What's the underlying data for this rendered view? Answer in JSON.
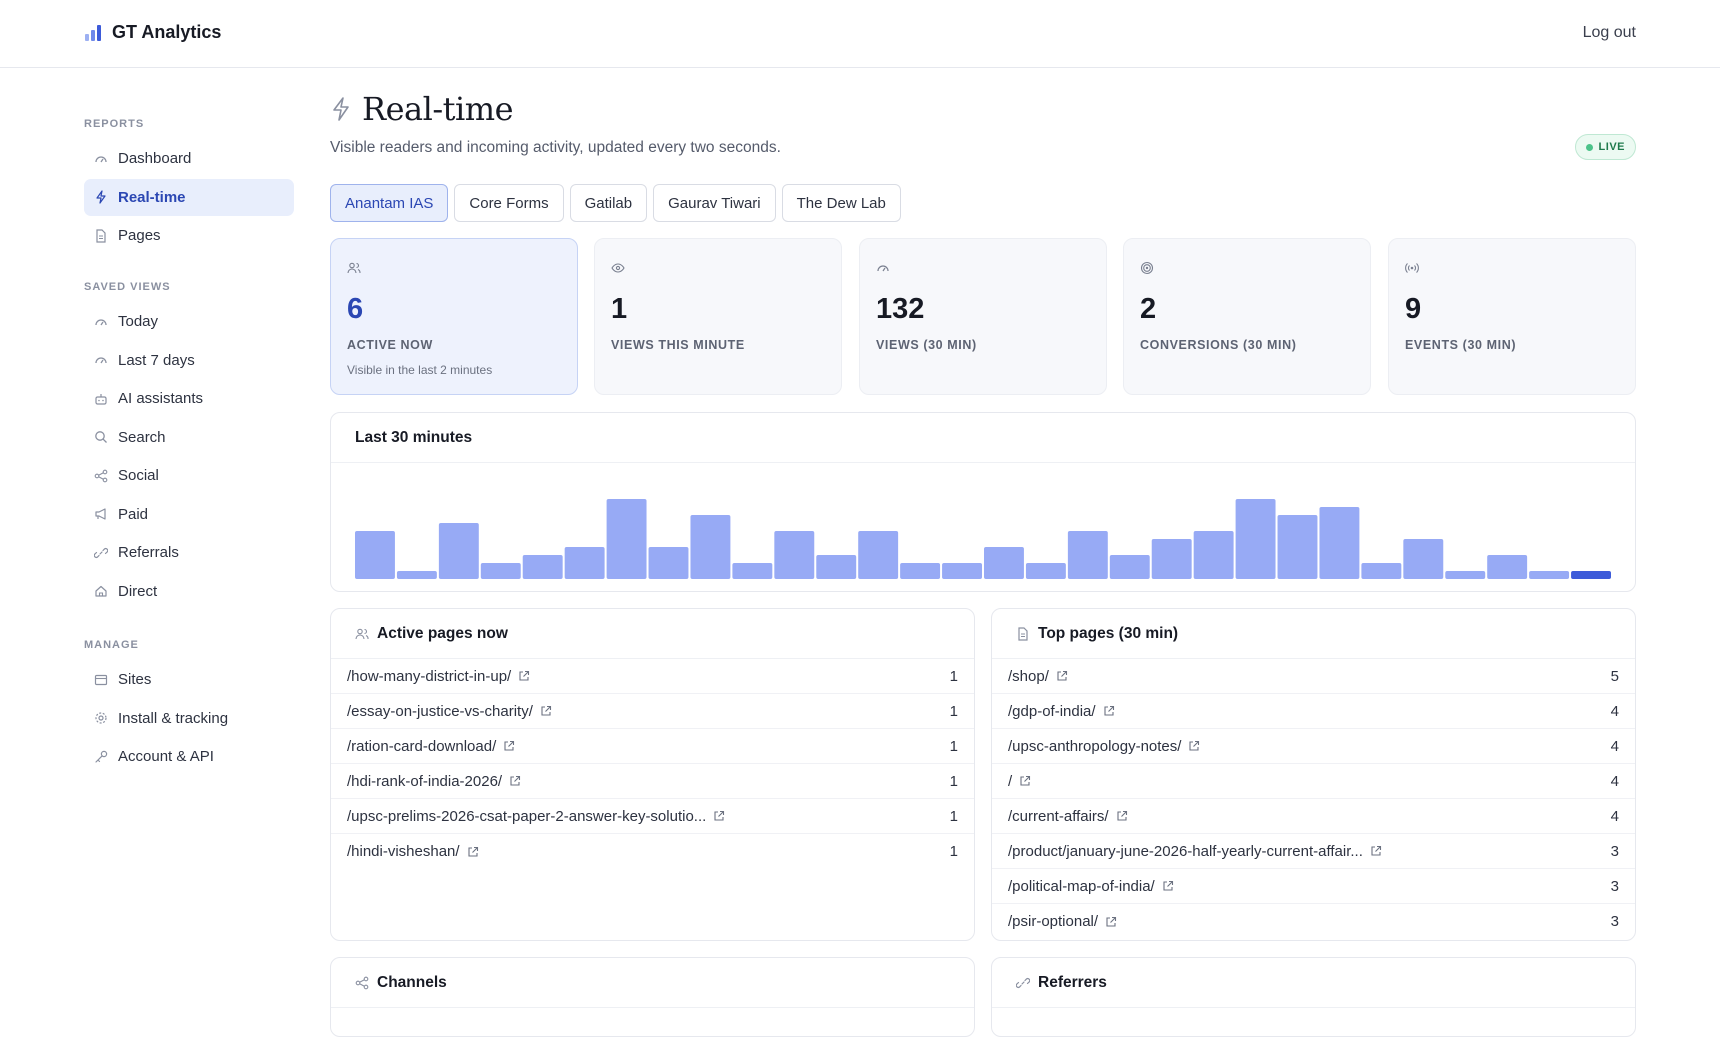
{
  "app": {
    "name": "GT Analytics",
    "logout_label": "Log out"
  },
  "sidebar": {
    "sections": [
      {
        "title": "REPORTS",
        "items": [
          {
            "label": "Dashboard",
            "icon": "gauge-icon",
            "active": false
          },
          {
            "label": "Real-time",
            "icon": "bolt-icon",
            "active": true
          },
          {
            "label": "Pages",
            "icon": "document-icon",
            "active": false
          }
        ]
      },
      {
        "title": "SAVED VIEWS",
        "items": [
          {
            "label": "Today",
            "icon": "gauge-icon"
          },
          {
            "label": "Last 7 days",
            "icon": "gauge-icon"
          },
          {
            "label": "AI assistants",
            "icon": "robot-icon"
          },
          {
            "label": "Search",
            "icon": "search-icon"
          },
          {
            "label": "Social",
            "icon": "share-icon"
          },
          {
            "label": "Paid",
            "icon": "megaphone-icon"
          },
          {
            "label": "Referrals",
            "icon": "link-icon"
          },
          {
            "label": "Direct",
            "icon": "home-icon"
          }
        ]
      },
      {
        "title": "MANAGE",
        "items": [
          {
            "label": "Sites",
            "icon": "browser-icon"
          },
          {
            "label": "Install & tracking",
            "icon": "gear-icon"
          },
          {
            "label": "Account & API",
            "icon": "key-icon"
          }
        ]
      }
    ]
  },
  "page": {
    "title": "Real-time",
    "subtitle": "Visible readers and incoming activity, updated every two seconds.",
    "live_badge": "LIVE"
  },
  "tabs": [
    {
      "label": "Anantam IAS",
      "active": true
    },
    {
      "label": "Core Forms",
      "active": false
    },
    {
      "label": "Gatilab",
      "active": false
    },
    {
      "label": "Gaurav Tiwari",
      "active": false
    },
    {
      "label": "The Dew Lab",
      "active": false
    }
  ],
  "stats": [
    {
      "value": "6",
      "label": "ACTIVE NOW",
      "sub": "Visible in the last 2 minutes",
      "icon": "users-icon",
      "active": true
    },
    {
      "value": "1",
      "label": "VIEWS THIS MINUTE",
      "icon": "eye-icon"
    },
    {
      "value": "132",
      "label": "VIEWS (30 MIN)",
      "icon": "gauge-icon"
    },
    {
      "value": "2",
      "label": "CONVERSIONS (30 MIN)",
      "icon": "target-icon"
    },
    {
      "value": "9",
      "label": "EVENTS (30 MIN)",
      "icon": "broadcast-icon"
    }
  ],
  "chart_card": {
    "title": "Last 30 minutes"
  },
  "chart_data": {
    "type": "bar",
    "values": [
      6,
      1,
      7,
      2,
      3,
      4,
      10,
      4,
      8,
      2,
      6,
      3,
      6,
      2,
      2,
      4,
      2,
      6,
      3,
      5,
      6,
      10,
      8,
      9,
      2,
      5,
      1,
      3,
      1,
      1
    ],
    "highlight_last": true,
    "colors": {
      "bar": "#97aaf5",
      "current": "#3d5bd9"
    }
  },
  "active_pages": {
    "title": "Active pages now",
    "rows": [
      {
        "path": "/how-many-district-in-up/",
        "count": "1"
      },
      {
        "path": "/essay-on-justice-vs-charity/",
        "count": "1"
      },
      {
        "path": "/ration-card-download/",
        "count": "1"
      },
      {
        "path": "/hdi-rank-of-india-2026/",
        "count": "1"
      },
      {
        "path": "/upsc-prelims-2026-csat-paper-2-answer-key-solutio...",
        "count": "1"
      },
      {
        "path": "/hindi-visheshan/",
        "count": "1"
      }
    ]
  },
  "top_pages": {
    "title": "Top pages (30 min)",
    "rows": [
      {
        "path": "/shop/",
        "count": "5"
      },
      {
        "path": "/gdp-of-india/",
        "count": "4"
      },
      {
        "path": "/upsc-anthropology-notes/",
        "count": "4"
      },
      {
        "path": "/",
        "count": "4"
      },
      {
        "path": "/current-affairs/",
        "count": "4"
      },
      {
        "path": "/product/january-june-2026-half-yearly-current-affair...",
        "count": "3"
      },
      {
        "path": "/political-map-of-india/",
        "count": "3"
      },
      {
        "path": "/psir-optional/",
        "count": "3"
      }
    ]
  },
  "channels": {
    "title": "Channels"
  },
  "referrers": {
    "title": "Referrers"
  },
  "colors": {
    "accent": "#2b47b3",
    "accent_bg": "#e8eefc",
    "live_green": "#4cc38a"
  }
}
